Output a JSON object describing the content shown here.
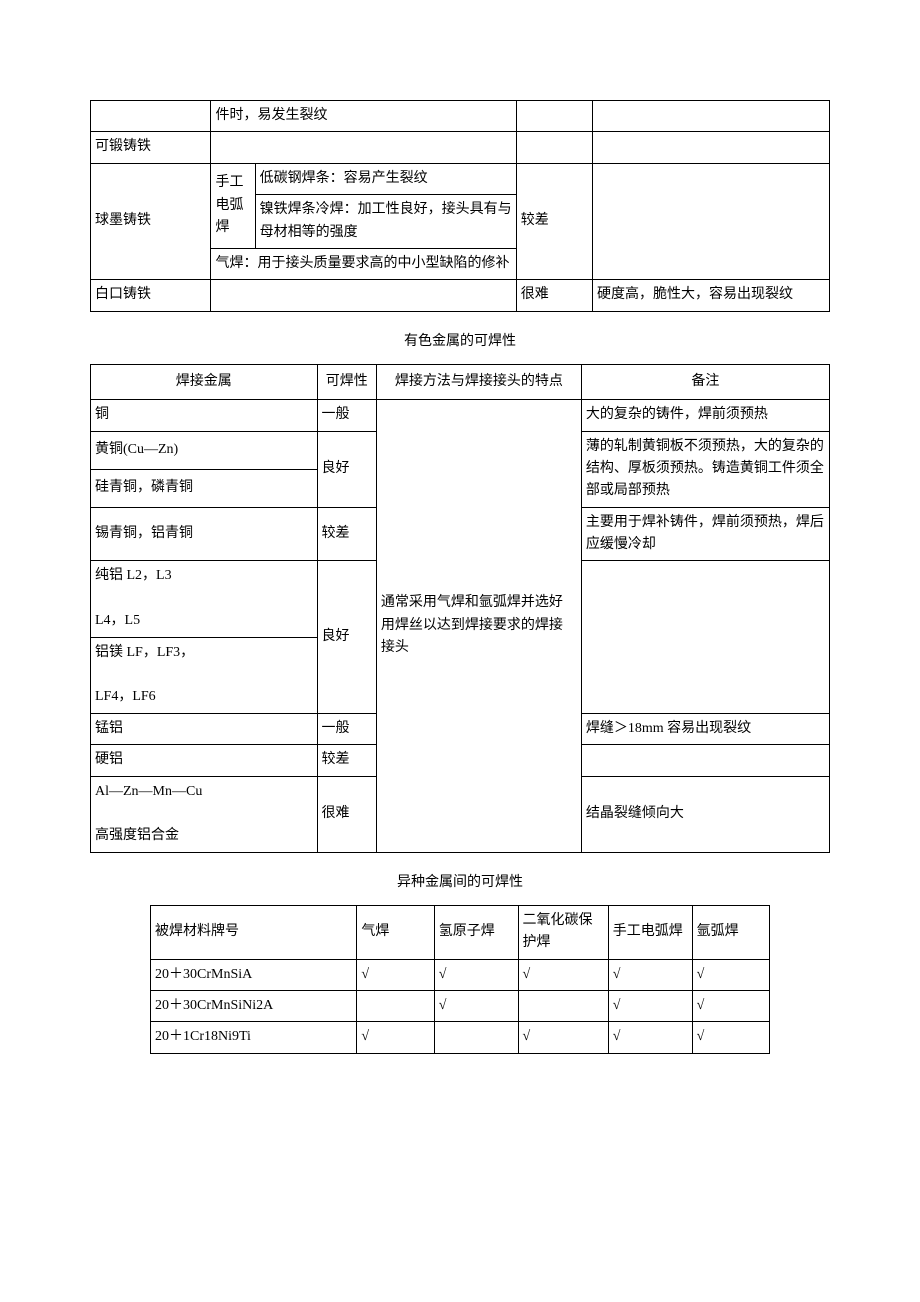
{
  "t1": {
    "r1_note": "件时，易发生裂纹",
    "r2_name": "可锻铸铁",
    "r3_name": "球墨铸铁",
    "r3_m1a": "手工电弧焊",
    "r3_m1b1": "低碳钢焊条：容易产生裂纹",
    "r3_m1b2": "镍铁焊条冷焊：加工性良好，接头具有与母材相等的强度",
    "r3_m2": "气焊：用于接头质量要求高的中小型缺陷的修补",
    "r3_w": "较差",
    "r4_name": "白口铸铁",
    "r4_w": "很难",
    "r4_note": "硬度高，脆性大，容易出现裂纹"
  },
  "title2": "有色金属的可焊性",
  "t2": {
    "h1": "焊接金属",
    "h2": "可焊性",
    "h3": "焊接方法与焊接接头的特点",
    "h4": "备注",
    "r1_m": "铜",
    "r1_w": "一般",
    "r1_n": "大的复杂的铸件，焊前须预热",
    "r2_m": "黄铜(Cu—Zn)",
    "r3_m": "硅青铜，磷青铜",
    "r23_w": "良好",
    "r23_n": "薄的轧制黄铜板不须预热，大的复杂的结构、厚板须预热。铸造黄铜工件须全部或局部预热",
    "r4_m": "锡青铜，铝青铜",
    "r4_w": "较差",
    "r4_n": "主要用于焊补铸件，焊前须预热，焊后应缓慢冷却",
    "r5_m": "纯铝 L2，L3\n\nL4，L5",
    "r6_m": "铝镁 LF，LF3，\n\nLF4，LF6",
    "r56_w": "良好",
    "method": "通常采用气焊和氩弧焊并选好用焊丝以达到焊接要求的焊接接头",
    "r7_m": "锰铝",
    "r7_w": "一般",
    "r7_n": "焊缝＞18mm 容易出现裂纹",
    "r8_m": "硬铝",
    "r8_w": "较差",
    "r9_m": "Al—Zn—Mn—Cu\n\n高强度铝合金",
    "r9_w": "很难",
    "r9_n": "结晶裂缝倾向大"
  },
  "title3": "异种金属间的可焊性",
  "t3": {
    "h1": "被焊材料牌号",
    "h2": "气焊",
    "h3": "氢原子焊",
    "h4": "二氧化碳保护焊",
    "h5": "手工电弧焊",
    "h6": "氩弧焊",
    "r1_m": "20＋30CrMnSiA",
    "r2_m": "20＋30CrMnSiNi2A",
    "r3_m": "20＋1Cr18Ni9Ti",
    "chk": "√",
    "r1": [
      "√",
      "√",
      "√",
      "√",
      "√"
    ],
    "r2": [
      "",
      "√",
      "",
      "√",
      "√"
    ],
    "r3": [
      "√",
      "",
      "√",
      "√",
      "√"
    ]
  }
}
